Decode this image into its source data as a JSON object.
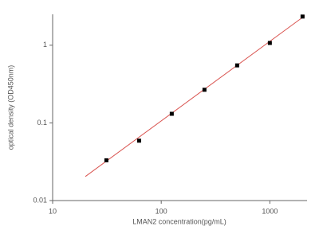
{
  "chart_data": {
    "type": "scatter",
    "xlabel": "LMAN2  concentration(pg/mL)",
    "ylabel": "optical density (OD450nm)",
    "xscale": "log",
    "yscale": "log",
    "xlim": [
      10,
      2200
    ],
    "ylim": [
      0.01,
      2.5
    ],
    "xticks": [
      10,
      100,
      1000
    ],
    "yticks": [
      0.01,
      0.1,
      1
    ],
    "grid": false,
    "series": [
      {
        "mode": "markers",
        "color": "#000000",
        "x": [
          31.25,
          62.5,
          125,
          250,
          500,
          1000,
          2000
        ],
        "values": [
          0.033,
          0.059,
          0.131,
          0.267,
          0.55,
          1.07,
          2.34
        ]
      },
      {
        "mode": "line",
        "color": "#d9534f",
        "x": [
          20,
          2100
        ],
        "values": [
          0.0204,
          2.4
        ]
      }
    ]
  }
}
